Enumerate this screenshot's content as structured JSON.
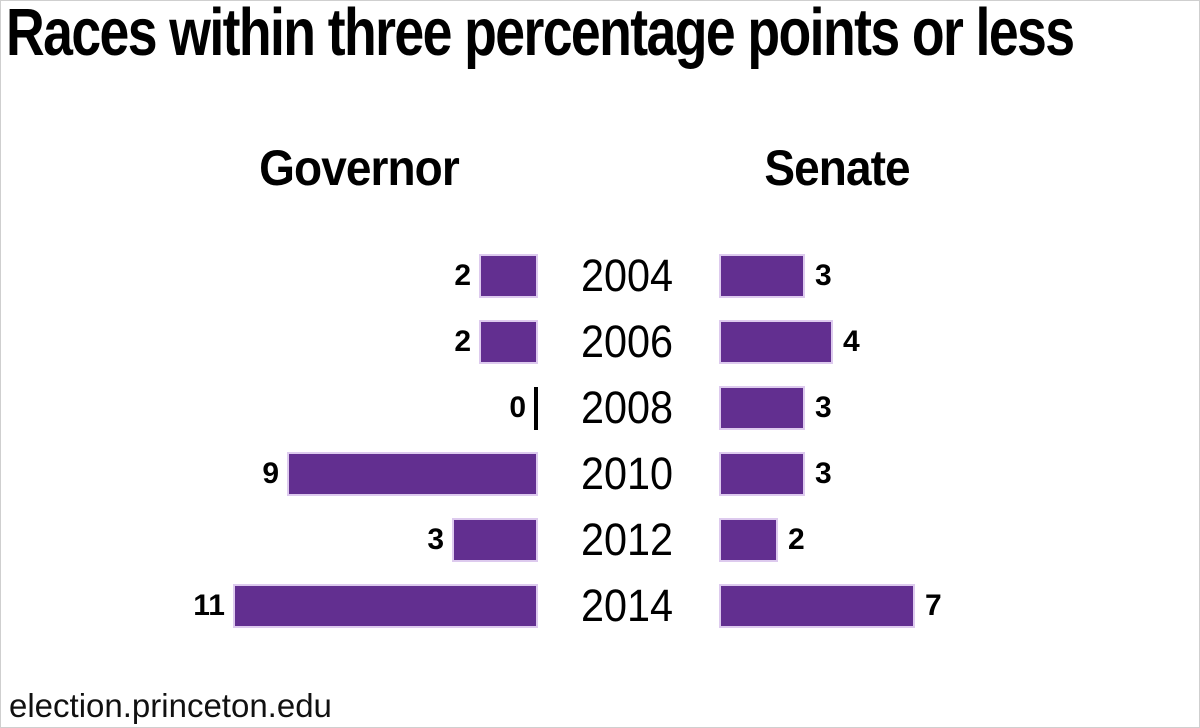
{
  "chart_data": {
    "type": "bar",
    "orientation": "horizontal-diverging",
    "title": "Races within three percentage points or less",
    "categories": [
      "2004",
      "2006",
      "2008",
      "2010",
      "2012",
      "2014"
    ],
    "series": [
      {
        "name": "Governor",
        "direction": "left",
        "values": [
          2,
          2,
          0,
          9,
          3,
          11
        ]
      },
      {
        "name": "Senate",
        "direction": "right",
        "values": [
          3,
          4,
          3,
          3,
          2,
          7
        ]
      }
    ],
    "value_labels_shown": true,
    "legend_position": "column-headers",
    "grid": false,
    "bar_color": "#622f90",
    "bar_border_color": "#ddcaee",
    "text_color": "#000000",
    "zero_marker": "black tick on Governor side for 2008"
  },
  "footer": {
    "source": "election.princeton.edu"
  }
}
